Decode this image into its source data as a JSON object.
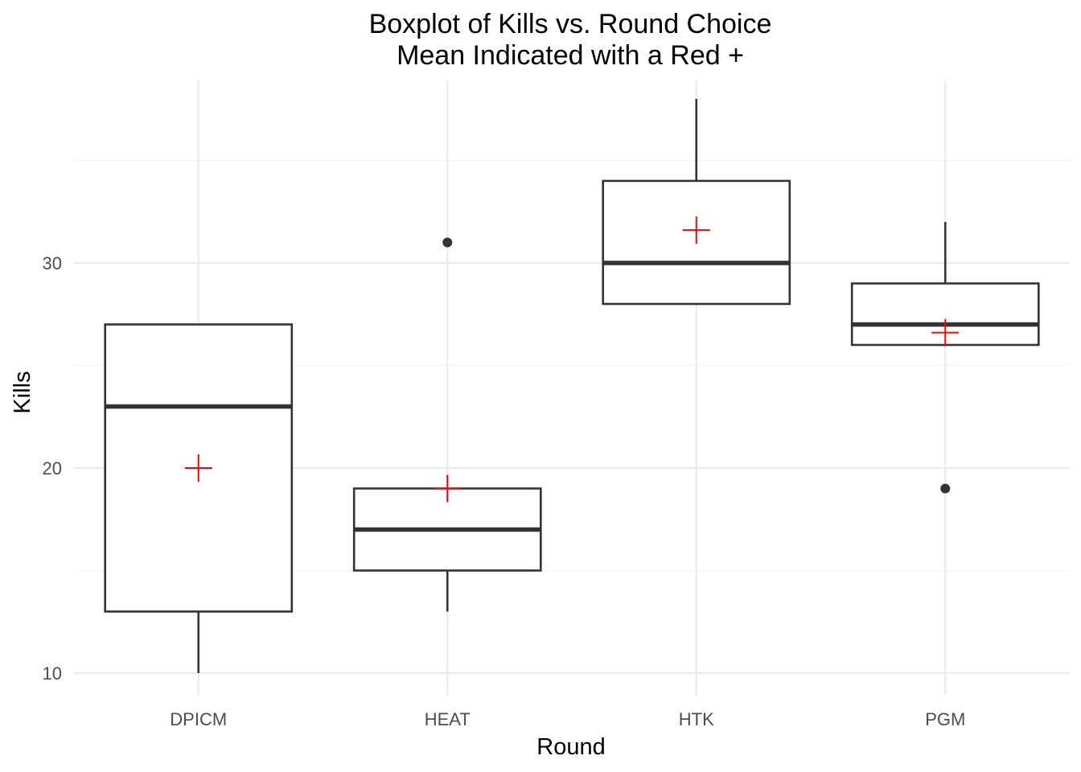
{
  "chart_data": {
    "type": "box",
    "title": "Boxplot of Kills vs. Round Choice",
    "subtitle": "Mean Indicated with a Red +",
    "xlabel": "Round",
    "ylabel": "Kills",
    "ylim": [
      8.9,
      38.9
    ],
    "y_ticks": [
      10,
      20,
      30
    ],
    "y_tick_labels": [
      "10",
      "20",
      "30"
    ],
    "y_minor_ticks": [
      15,
      25,
      35
    ],
    "grid": true,
    "categories": [
      "DPICM",
      "HEAT",
      "HTK",
      "PGM"
    ],
    "boxes": [
      {
        "category": "DPICM",
        "whisker_low": 10,
        "q1": 13,
        "median": 23,
        "q3": 27,
        "whisker_high": 27,
        "outliers": [],
        "mean": 20
      },
      {
        "category": "HEAT",
        "whisker_low": 13,
        "q1": 15,
        "median": 17,
        "q3": 19,
        "whisker_high": 19,
        "outliers": [
          31
        ],
        "mean": 19
      },
      {
        "category": "HTK",
        "whisker_low": 28,
        "q1": 28,
        "median": 30,
        "q3": 34,
        "whisker_high": 38,
        "outliers": [],
        "mean": 31.6
      },
      {
        "category": "PGM",
        "whisker_low": 26,
        "q1": 26,
        "median": 27,
        "q3": 29,
        "whisker_high": 32,
        "outliers": [
          19
        ],
        "mean": 26.6
      }
    ],
    "mean_marker": "+",
    "mean_color": "#ff0000",
    "box_color": "#333333"
  }
}
